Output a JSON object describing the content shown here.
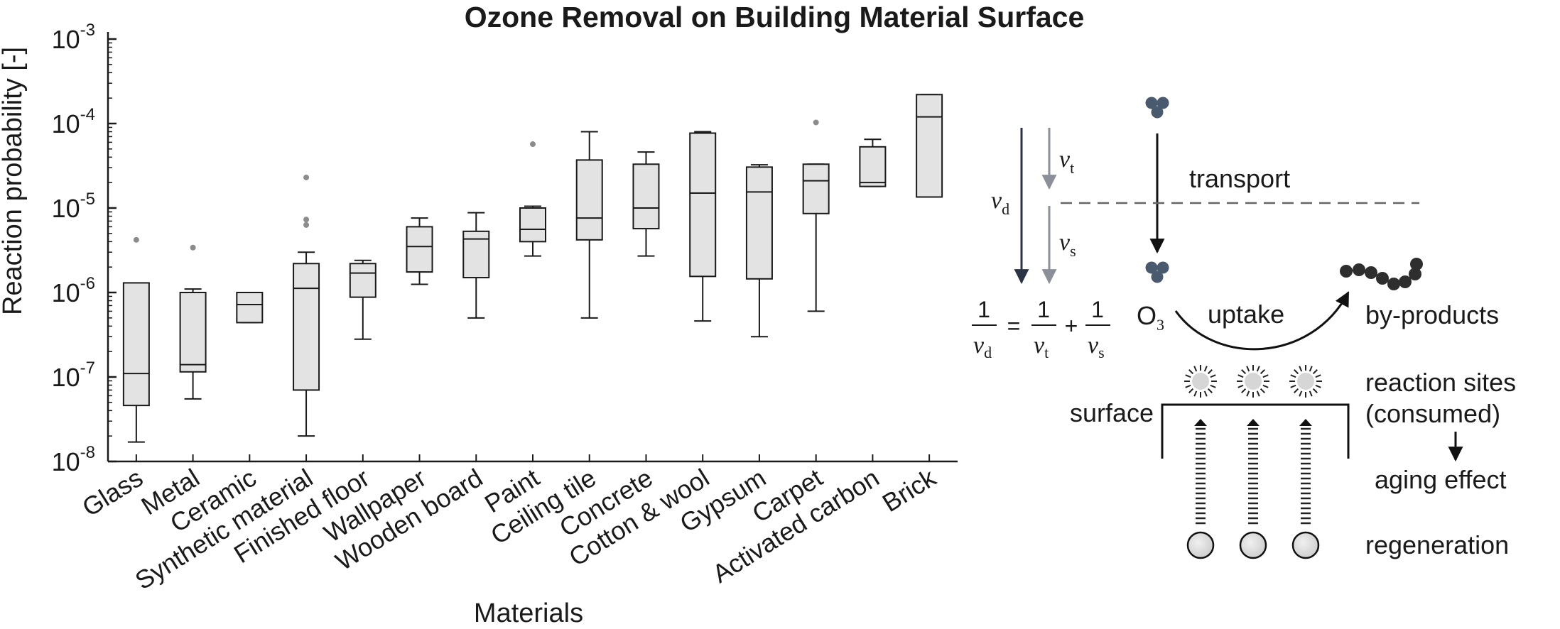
{
  "chart_data": {
    "type": "box",
    "title": "Ozone Removal on Building Material Surface",
    "xlabel": "Materials",
    "ylabel": "Reaction probability [-]",
    "yscale": "log",
    "ylim": [
      1e-08,
      0.001
    ],
    "yticks": [
      {
        "base": "10",
        "exp": "-8",
        "value": 1e-08
      },
      {
        "base": "10",
        "exp": "-7",
        "value": 1e-07
      },
      {
        "base": "10",
        "exp": "-6",
        "value": 1e-06
      },
      {
        "base": "10",
        "exp": "-5",
        "value": 1e-05
      },
      {
        "base": "10",
        "exp": "-4",
        "value": 0.0001
      },
      {
        "base": "10",
        "exp": "-3",
        "value": 0.001
      }
    ],
    "box_fill": "#e3e3e3",
    "box_stroke": "#1a1a1a",
    "outlier_color": "#8c8c8c",
    "categories": [
      "Glass",
      "Metal",
      "Ceramic",
      "Synthetic material",
      "Finished floor",
      "Wallpaper",
      "Wooden board",
      "Paint",
      "Ceiling tile",
      "Concrete",
      "Cotton & wool",
      "Gypsum",
      "Carpet",
      "Activated carbon",
      "Brick"
    ],
    "boxes": [
      {
        "whisker_low": 1.7e-08,
        "q1": 4.6e-08,
        "median": 1.1e-07,
        "q3": 1.3e-06,
        "whisker_high": 1.3e-06,
        "outliers": [
          4.2e-06
        ]
      },
      {
        "whisker_low": 5.5e-08,
        "q1": 1.15e-07,
        "median": 1.4e-07,
        "q3": 1e-06,
        "whisker_high": 1.1e-06,
        "outliers": [
          3.4e-06
        ]
      },
      {
        "whisker_low": 4.4e-07,
        "q1": 4.4e-07,
        "median": 7.2e-07,
        "q3": 1e-06,
        "whisker_high": 1e-06,
        "outliers": []
      },
      {
        "whisker_low": 2e-08,
        "q1": 7e-08,
        "median": 1.12e-06,
        "q3": 2.2e-06,
        "whisker_high": 3e-06,
        "outliers": [
          6.3e-06,
          7.3e-06,
          2.3e-05
        ]
      },
      {
        "whisker_low": 2.8e-07,
        "q1": 8.8e-07,
        "median": 1.7e-06,
        "q3": 2.2e-06,
        "whisker_high": 2.4e-06,
        "outliers": []
      },
      {
        "whisker_low": 1.25e-06,
        "q1": 1.75e-06,
        "median": 3.5e-06,
        "q3": 6e-06,
        "whisker_high": 7.6e-06,
        "outliers": []
      },
      {
        "whisker_low": 5e-07,
        "q1": 1.5e-06,
        "median": 4.3e-06,
        "q3": 5.3e-06,
        "whisker_high": 8.8e-06,
        "outliers": []
      },
      {
        "whisker_low": 2.7e-06,
        "q1": 4e-06,
        "median": 5.6e-06,
        "q3": 1e-05,
        "whisker_high": 1.05e-05,
        "outliers": [
          5.7e-05
        ]
      },
      {
        "whisker_low": 5e-07,
        "q1": 4.2e-06,
        "median": 7.6e-06,
        "q3": 3.7e-05,
        "whisker_high": 8e-05,
        "outliers": []
      },
      {
        "whisker_low": 2.7e-06,
        "q1": 5.7e-06,
        "median": 1e-05,
        "q3": 3.3e-05,
        "whisker_high": 4.6e-05,
        "outliers": []
      },
      {
        "whisker_low": 4.6e-07,
        "q1": 1.55e-06,
        "median": 1.5e-05,
        "q3": 7.7e-05,
        "whisker_high": 8e-05,
        "outliers": []
      },
      {
        "whisker_low": 3e-07,
        "q1": 1.45e-06,
        "median": 1.55e-05,
        "q3": 3.05e-05,
        "whisker_high": 3.25e-05,
        "outliers": []
      },
      {
        "whisker_low": 6e-07,
        "q1": 8.6e-06,
        "median": 2.1e-05,
        "q3": 3.3e-05,
        "whisker_high": 3.3e-05,
        "outliers": [
          0.000103
        ]
      },
      {
        "whisker_low": 1.8e-05,
        "q1": 1.8e-05,
        "median": 2e-05,
        "q3": 5.3e-05,
        "whisker_high": 6.5e-05,
        "outliers": []
      },
      {
        "whisker_low": 1.35e-05,
        "q1": 1.35e-05,
        "median": 0.00012,
        "q3": 0.00022,
        "whisker_high": 0.00022,
        "outliers": []
      }
    ]
  },
  "diagram": {
    "vd": "v",
    "vd_sub": "d",
    "vt": "v",
    "vt_sub": "t",
    "vs": "v",
    "vs_sub": "s",
    "transport_label": "transport",
    "o3_label": "O",
    "o3_sub": "3",
    "uptake_label": "uptake",
    "byproducts_label": "by-products",
    "reaction_sites_label": "reaction sites",
    "consumed_label": "(consumed)",
    "surface_label": "surface",
    "aging_label": "aging effect",
    "regeneration_label": "regeneration",
    "eq_one": "1",
    "eq_equals": "=",
    "eq_plus": "+",
    "molecule_color": "#4a5a6e",
    "byproduct_color": "#2e2e2e",
    "vd_arrow_color": "#2b3444",
    "vt_arrow_color": "#8a8f99",
    "dashed_line_color": "#666666"
  }
}
